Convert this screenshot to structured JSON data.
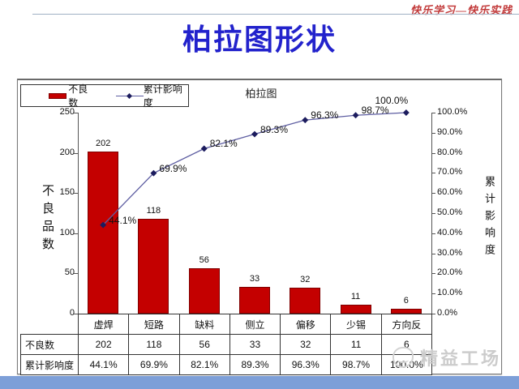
{
  "slide": {
    "slogan": "快乐学习—快乐实践",
    "title": "柏拉图形状"
  },
  "watermark": {
    "text": "精益工场"
  },
  "colors": {
    "title_blue": "#2222CC",
    "slogan_red": "#C23A3A",
    "bar_red": "#C40000",
    "bar_border": "#7F0000",
    "line_blue": "#5E5EA2",
    "marker_navy": "#1C1C5E",
    "footer_blue": "#7D9FD8"
  },
  "chart_data": {
    "type": "bar",
    "subtype": "pareto-combo",
    "title": "柏拉图",
    "categories": [
      "虚焊",
      "短路",
      "缺料",
      "侧立",
      "偏移",
      "少锡",
      "方向反"
    ],
    "series": [
      {
        "name": "不良数",
        "type": "bar",
        "axis": "left",
        "values": [
          202,
          118,
          56,
          33,
          32,
          11,
          6
        ]
      },
      {
        "name": "累计影响度",
        "type": "line",
        "axis": "right",
        "values": [
          44.1,
          69.9,
          82.1,
          89.3,
          96.3,
          98.7,
          100.0
        ],
        "labels": [
          "44.1%",
          "69.9%",
          "82.1%",
          "89.3%",
          "96.3%",
          "98.7%",
          "100.0%"
        ]
      }
    ],
    "left_axis": {
      "label": "不良品数",
      "ticks": [
        250,
        200,
        150,
        100,
        50,
        0
      ],
      "range": [
        0,
        250
      ]
    },
    "right_axis": {
      "label": "累计影响度",
      "ticks": [
        "100.0%",
        "90.0%",
        "80.0%",
        "70.0%",
        "60.0%",
        "50.0%",
        "40.0%",
        "30.0%",
        "20.0%",
        "10.0%",
        "0.0%"
      ],
      "range": [
        0,
        100
      ]
    },
    "legend": [
      "不良数",
      "累计影响度"
    ],
    "legend_position": "top-left",
    "grid": false
  },
  "table": {
    "columns": [
      "虚焊",
      "短路",
      "缺料",
      "侧立",
      "偏移",
      "少锡",
      "方向反"
    ],
    "rows": [
      {
        "label": "不良数",
        "values": [
          "202",
          "118",
          "56",
          "33",
          "32",
          "11",
          "6"
        ]
      },
      {
        "label": "累计影响度",
        "values": [
          "44.1%",
          "69.9%",
          "82.1%",
          "89.3%",
          "96.3%",
          "98.7%",
          "100.0%"
        ]
      }
    ]
  }
}
